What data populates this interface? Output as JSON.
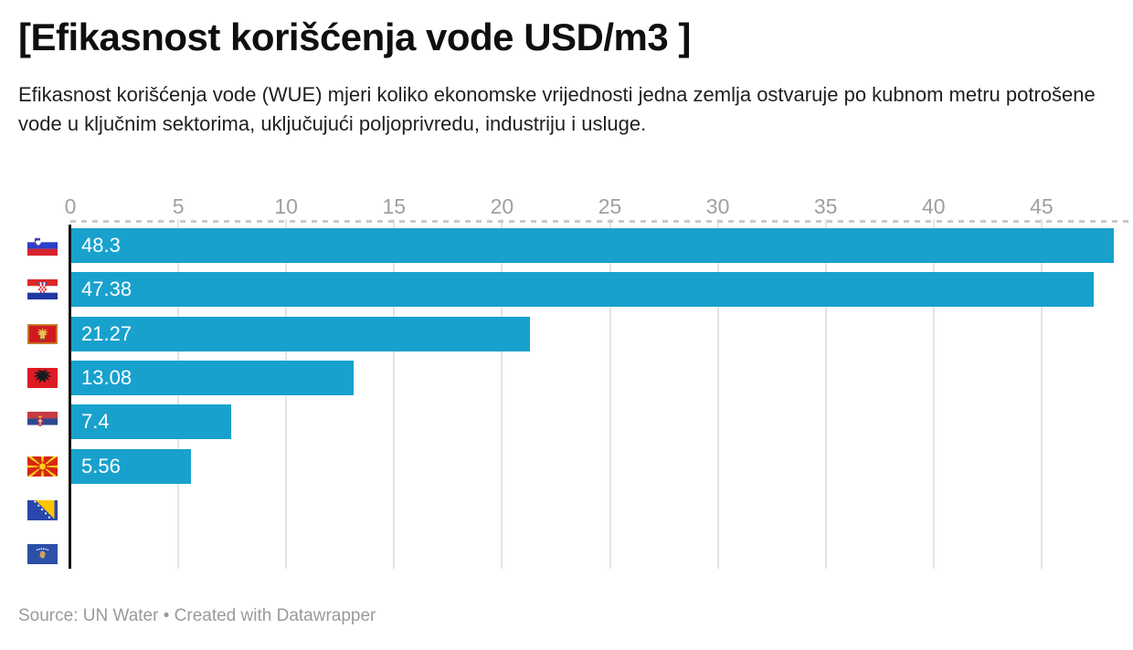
{
  "header": {
    "title": "[Efikasnost korišćenja vode USD/m3 ]",
    "description": "Efikasnost korišćenja vode (WUE) mjeri koliko ekonomske vrijednosti jedna zemlja ostvaruje po kubnom metru potrošene vode u ključnim sektorima, uključujući poljoprivredu, industriju i usluge."
  },
  "chart_data": {
    "type": "bar",
    "orientation": "horizontal",
    "title": "[Efikasnost korišćenja vode USD/m3 ]",
    "categories": [
      "Slovenia",
      "Croatia",
      "Montenegro",
      "Albania",
      "Serbia",
      "North Macedonia",
      "Bosnia and Herzegovina",
      "Kosovo"
    ],
    "flag_icons": [
      "slovenia-flag-icon",
      "croatia-flag-icon",
      "montenegro-flag-icon",
      "albania-flag-icon",
      "serbia-flag-icon",
      "north-macedonia-flag-icon",
      "bosnia-herzegovina-flag-icon",
      "kosovo-flag-icon"
    ],
    "values": [
      48.3,
      47.38,
      21.27,
      13.08,
      7.4,
      5.56,
      null,
      null
    ],
    "value_labels": [
      "48.3",
      "47.38",
      "21.27",
      "13.08",
      "7.4",
      "5.56",
      "",
      ""
    ],
    "x_ticks": [
      0,
      5,
      10,
      15,
      20,
      25,
      30,
      35,
      40,
      45
    ],
    "x_tick_labels": [
      "0",
      "5",
      "10",
      "15",
      "20",
      "25",
      "30",
      "35",
      "40",
      "45"
    ],
    "xlim": [
      0,
      49.2
    ],
    "grid": true,
    "legend": "none",
    "bar_color": "#18a1cd",
    "value_label_color": "#ffffff",
    "axis_label_color": "#a0a0a0"
  },
  "footer": {
    "source_text": "Source: UN Water • Created with Datawrapper"
  }
}
